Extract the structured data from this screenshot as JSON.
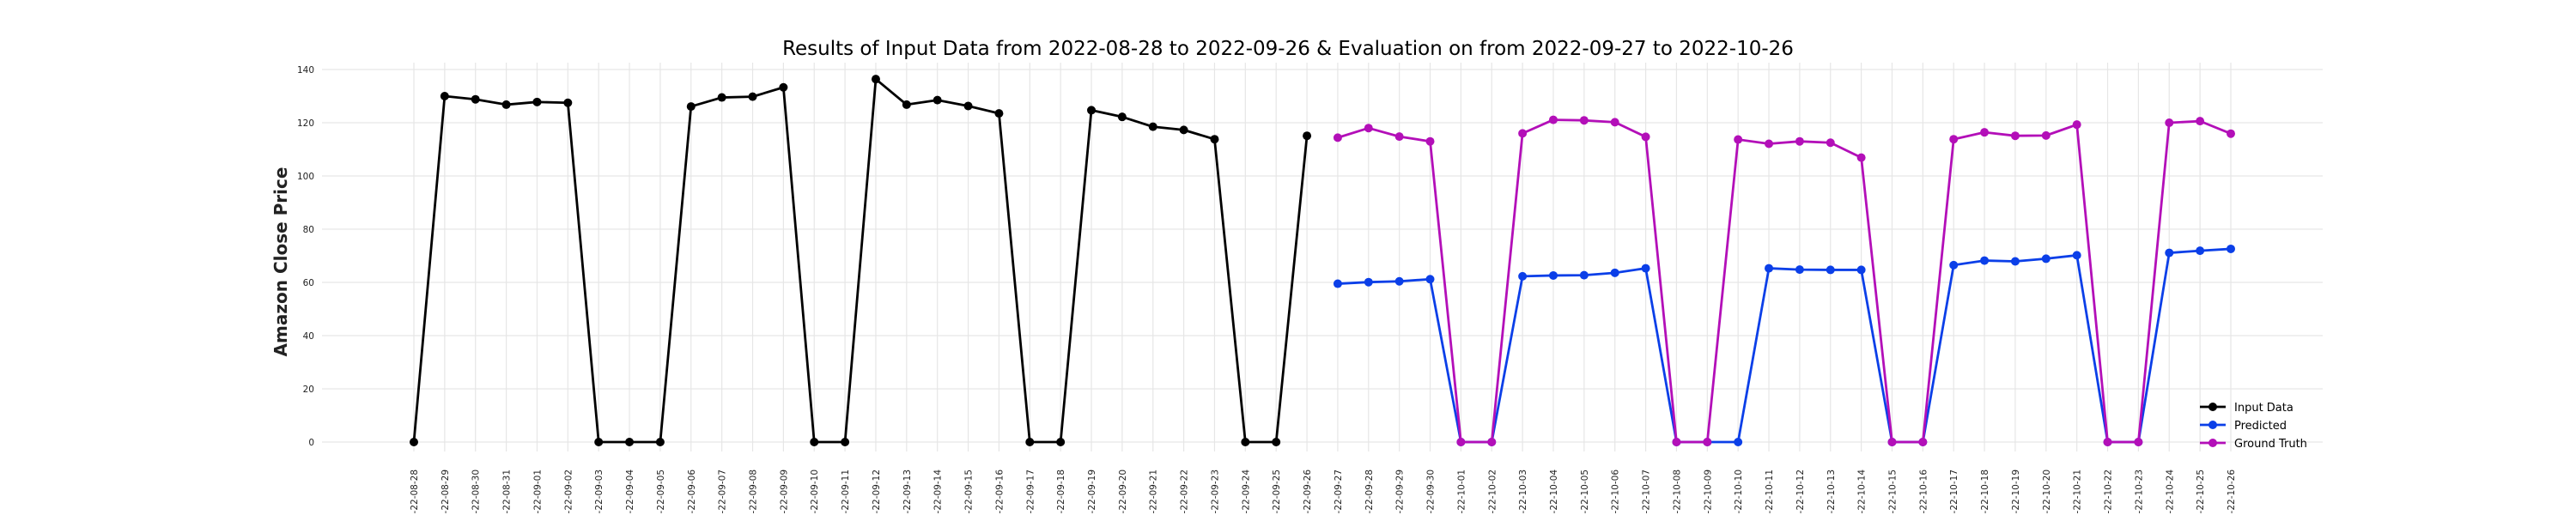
{
  "chart_data": {
    "type": "line",
    "title": "Results of Input Data from 2022-08-28 to 2022-09-26 & Evaluation on from 2022-09-27 to 2022-10-26",
    "xlabel": "",
    "ylabel": "Amazon Close Price",
    "ylim": [
      0,
      140
    ],
    "yticks": [
      0,
      20,
      40,
      60,
      80,
      100,
      120,
      140
    ],
    "grid": true,
    "legend_position": "lower-right",
    "categories": [
      "2022-08-28",
      "2022-08-29",
      "2022-08-30",
      "2022-08-31",
      "2022-09-01",
      "2022-09-02",
      "2022-09-03",
      "2022-09-04",
      "2022-09-05",
      "2022-09-06",
      "2022-09-07",
      "2022-09-08",
      "2022-09-09",
      "2022-09-10",
      "2022-09-11",
      "2022-09-12",
      "2022-09-13",
      "2022-09-14",
      "2022-09-15",
      "2022-09-16",
      "2022-09-17",
      "2022-09-18",
      "2022-09-19",
      "2022-09-20",
      "2022-09-21",
      "2022-09-22",
      "2022-09-23",
      "2022-09-24",
      "2022-09-25",
      "2022-09-26",
      "2022-09-27",
      "2022-09-28",
      "2022-09-29",
      "2022-09-30",
      "2022-10-01",
      "2022-10-02",
      "2022-10-03",
      "2022-10-04",
      "2022-10-05",
      "2022-10-06",
      "2022-10-07",
      "2022-10-08",
      "2022-10-09",
      "2022-10-10",
      "2022-10-11",
      "2022-10-12",
      "2022-10-13",
      "2022-10-14",
      "2022-10-15",
      "2022-10-16",
      "2022-10-17",
      "2022-10-18",
      "2022-10-19",
      "2022-10-20",
      "2022-10-21",
      "2022-10-22",
      "2022-10-23",
      "2022-10-24",
      "2022-10-25",
      "2022-10-26"
    ],
    "tick_labels": [
      "-22-08-28",
      "-22-08-29",
      "-22-08-30",
      "-22-08-31",
      "-22-09-01",
      "-22-09-02",
      "-22-09-03",
      "-22-09-04",
      "-22-09-05",
      "-22-09-06",
      "-22-09-07",
      "-22-09-08",
      "-22-09-09",
      "-22-09-10",
      "-22-09-11",
      "-22-09-12",
      "-22-09-13",
      "-22-09-14",
      "-22-09-15",
      "-22-09-16",
      "-22-09-17",
      "-22-09-18",
      "-22-09-19",
      "-22-09-20",
      "-22-09-21",
      "-22-09-22",
      "-22-09-23",
      "-22-09-24",
      "-22-09-25",
      "-22-09-26",
      "-22-09-27",
      "-22-09-28",
      "-22-09-29",
      "-22-09-30",
      "-22-10-01",
      "-22-10-02",
      "-22-10-03",
      "-22-10-04",
      "-22-10-05",
      "-22-10-06",
      "-22-10-07",
      "-22-10-08",
      "-22-10-09",
      "-22-10-10",
      "-22-10-11",
      "-22-10-12",
      "-22-10-13",
      "-22-10-14",
      "-22-10-15",
      "-22-10-16",
      "-22-10-17",
      "-22-10-18",
      "-22-10-19",
      "-22-10-20",
      "-22-10-21",
      "-22-10-22",
      "-22-10-23",
      "-22-10-24",
      "-22-10-25",
      "-22-10-26"
    ],
    "series": [
      {
        "name": "Input Data",
        "color": "#000000",
        "x": [
          "2022-08-28",
          "2022-08-29",
          "2022-08-30",
          "2022-08-31",
          "2022-09-01",
          "2022-09-02",
          "2022-09-03",
          "2022-09-04",
          "2022-09-05",
          "2022-09-06",
          "2022-09-07",
          "2022-09-08",
          "2022-09-09",
          "2022-09-10",
          "2022-09-11",
          "2022-09-12",
          "2022-09-13",
          "2022-09-14",
          "2022-09-15",
          "2022-09-16",
          "2022-09-17",
          "2022-09-18",
          "2022-09-19",
          "2022-09-20",
          "2022-09-21",
          "2022-09-22",
          "2022-09-23",
          "2022-09-24",
          "2022-09-25",
          "2022-09-26"
        ],
        "values": [
          0,
          130,
          128.8,
          126.8,
          127.8,
          127.5,
          0,
          0,
          0,
          126.1,
          129.5,
          129.8,
          133.3,
          0,
          0,
          136.4,
          126.8,
          128.5,
          126.3,
          123.5,
          0,
          0,
          124.7,
          122.2,
          118.5,
          117.3,
          113.8,
          0,
          0,
          115.1
        ]
      },
      {
        "name": "Predicted",
        "color": "#0b3fe8",
        "x": [
          "2022-09-27",
          "2022-09-28",
          "2022-09-29",
          "2022-09-30",
          "2022-10-01",
          "2022-10-02",
          "2022-10-03",
          "2022-10-04",
          "2022-10-05",
          "2022-10-06",
          "2022-10-07",
          "2022-10-08",
          "2022-10-09",
          "2022-10-10",
          "2022-10-11",
          "2022-10-12",
          "2022-10-13",
          "2022-10-14",
          "2022-10-15",
          "2022-10-16",
          "2022-10-17",
          "2022-10-18",
          "2022-10-19",
          "2022-10-20",
          "2022-10-21",
          "2022-10-22",
          "2022-10-23",
          "2022-10-24",
          "2022-10-25",
          "2022-10-26"
        ],
        "values": [
          59.5,
          60.1,
          60.4,
          61.2,
          0,
          0,
          62.3,
          62.6,
          62.7,
          63.6,
          65.3,
          0,
          0,
          0,
          65.3,
          64.8,
          64.7,
          64.7,
          0,
          0,
          66.5,
          68.2,
          67.9,
          68.9,
          70.2,
          0,
          0,
          71.1,
          71.9,
          72.6
        ]
      },
      {
        "name": "Ground Truth",
        "color": "#b30fb8",
        "x": [
          "2022-09-27",
          "2022-09-28",
          "2022-09-29",
          "2022-09-30",
          "2022-10-01",
          "2022-10-02",
          "2022-10-03",
          "2022-10-04",
          "2022-10-05",
          "2022-10-06",
          "2022-10-07",
          "2022-10-08",
          "2022-10-09",
          "2022-10-10",
          "2022-10-11",
          "2022-10-12",
          "2022-10-13",
          "2022-10-14",
          "2022-10-15",
          "2022-10-16",
          "2022-10-17",
          "2022-10-18",
          "2022-10-19",
          "2022-10-20",
          "2022-10-21",
          "2022-10-22",
          "2022-10-23",
          "2022-10-24",
          "2022-10-25",
          "2022-10-26"
        ],
        "values": [
          114.4,
          118,
          114.8,
          113,
          0,
          0,
          116,
          121.1,
          120.9,
          120.2,
          114.7,
          0,
          0,
          113.7,
          112.1,
          113,
          112.5,
          106.9,
          0,
          0,
          113.8,
          116.4,
          115.1,
          115.2,
          119.3,
          0,
          0,
          120,
          120.6,
          115.9
        ]
      }
    ]
  }
}
